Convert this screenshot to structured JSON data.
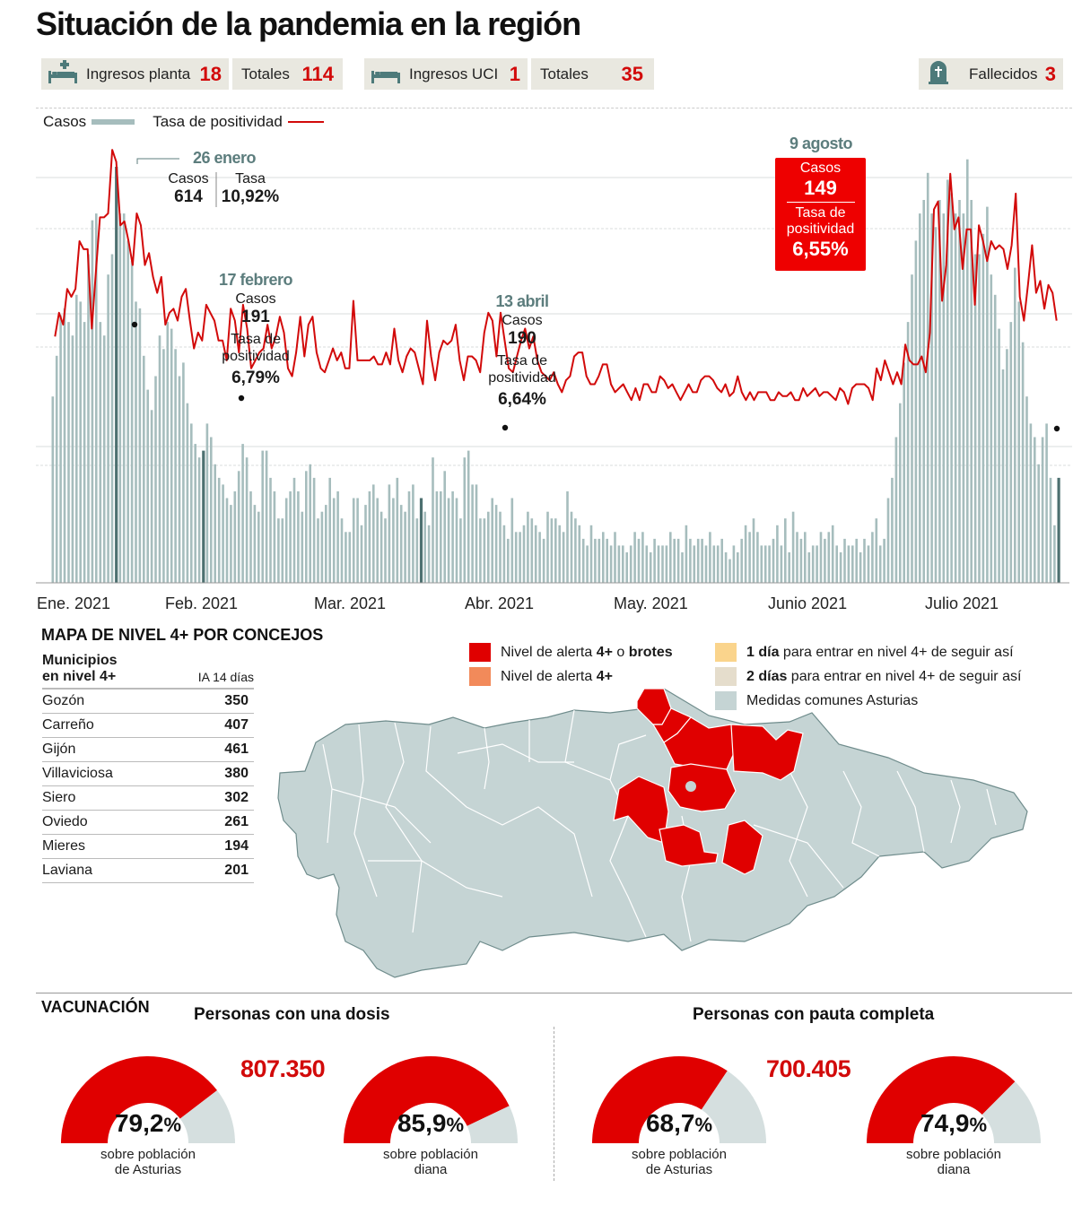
{
  "header": {
    "title": "Situación de la pandemia en la región"
  },
  "stats": {
    "ingresos_planta": {
      "label": "Ingresos planta",
      "value": "18",
      "icon": "hospital-bed-plus-icon"
    },
    "totales_planta": {
      "label": "Totales",
      "value": "114"
    },
    "ingresos_uci": {
      "label": "Ingresos UCI",
      "value": "1",
      "icon": "hospital-bed-icon"
    },
    "totales_uci": {
      "label": "Totales",
      "value": "35"
    },
    "fallecidos": {
      "label": "Fallecidos",
      "value": "3",
      "icon": "tombstone-icon"
    }
  },
  "chart_data": {
    "type": "bar+line",
    "legend": {
      "bars": "Casos",
      "line": "Tasa de positividad"
    },
    "legend_placement": "top-left",
    "x_tick_labels": [
      "Ene. 2021",
      "Feb. 2021",
      "Mar. 2021",
      "Abr. 2021",
      "May. 2021",
      "Junio 2021",
      "Julio 2021"
    ],
    "series": [
      {
        "name": "Casos",
        "kind": "bar",
        "color": "#a6bdbd",
        "values": [
          275,
          335,
          395,
          405,
          385,
          365,
          425,
          415,
          385,
          485,
          535,
          545,
          385,
          365,
          455,
          485,
          614,
          545,
          545,
          505,
          475,
          415,
          405,
          335,
          285,
          255,
          305,
          365,
          345,
          385,
          375,
          345,
          305,
          325,
          265,
          235,
          205,
          185,
          195,
          235,
          215,
          175,
          155,
          145,
          125,
          115,
          135,
          165,
          205,
          185,
          135,
          115,
          105,
          195,
          195,
          155,
          135,
          95,
          95,
          125,
          135,
          155,
          135,
          105,
          165,
          175,
          155,
          95,
          105,
          115,
          155,
          125,
          135,
          95,
          75,
          75,
          125,
          125,
          85,
          115,
          135,
          145,
          125,
          105,
          95,
          145,
          125,
          155,
          115,
          105,
          135,
          145,
          95,
          125,
          105,
          85,
          185,
          135,
          135,
          165,
          125,
          135,
          125,
          95,
          185,
          195,
          145,
          145,
          95,
          95,
          105,
          125,
          115,
          105,
          85,
          65,
          125,
          75,
          75,
          85,
          105,
          95,
          85,
          75,
          65,
          105,
          95,
          95,
          85,
          75,
          135,
          105,
          95,
          85,
          65,
          55,
          85,
          65,
          65,
          75,
          65,
          55,
          75,
          55,
          55,
          45,
          55,
          75,
          65,
          75,
          55,
          45,
          65,
          55,
          55,
          55,
          75,
          65,
          65,
          45,
          85,
          65,
          55,
          65,
          65,
          55,
          75,
          55,
          55,
          65,
          45,
          35,
          55,
          45,
          65,
          85,
          75,
          95,
          75,
          55,
          55,
          55,
          65,
          85,
          55,
          95,
          45,
          105,
          75,
          65,
          75,
          45,
          55,
          55,
          75,
          65,
          75,
          85,
          55,
          45,
          65,
          55,
          55,
          65,
          45,
          65,
          55,
          75,
          95,
          55,
          65,
          125,
          155,
          215,
          265,
          325,
          385,
          455,
          505,
          545,
          565,
          605,
          545,
          525,
          565,
          545,
          595,
          575,
          545,
          565,
          545,
          625,
          565,
          485,
          485,
          515,
          555,
          455,
          425,
          375,
          315,
          345,
          385,
          465,
          415,
          355,
          275,
          235,
          215,
          175,
          215,
          235,
          155,
          85,
          155
        ]
      },
      {
        "name": "Tasa de positividad",
        "kind": "line",
        "color": "#d20a0a",
        "unit": "%",
        "values": [
          6.2,
          6.8,
          6.5,
          7.4,
          7.2,
          7.4,
          8.6,
          8.4,
          8.4,
          6.4,
          7.8,
          9.2,
          9.2,
          9.3,
          10.9,
          10.6,
          9.0,
          9.1,
          8.6,
          8.0,
          9.3,
          9.0,
          8.0,
          8.3,
          7.7,
          7.3,
          7.7,
          6.5,
          6.8,
          6.9,
          6.6,
          7.2,
          7.4,
          6.6,
          5.9,
          6.3,
          6.1,
          7.0,
          6.8,
          6.6,
          6.1,
          6.1,
          5.6,
          6.9,
          6.6,
          5.8,
          7.0,
          6.4,
          5.4,
          5.6,
          5.8,
          5.9,
          6.5,
          5.9,
          6.2,
          6.7,
          6.3,
          5.4,
          5.2,
          5.8,
          6.7,
          5.7,
          6.5,
          6.7,
          5.8,
          5.4,
          5.3,
          5.6,
          5.9,
          5.6,
          5.8,
          5.4,
          5.4,
          7.1,
          5.6,
          5.6,
          5.6,
          5.6,
          5.7,
          5.5,
          5.5,
          5.8,
          5.5,
          6.4,
          5.6,
          5.3,
          5.7,
          5.9,
          5.8,
          5.4,
          5.0,
          6.6,
          5.7,
          5.1,
          5.8,
          6.1,
          6.0,
          6.1,
          6.5,
          5.6,
          5.1,
          5.7,
          5.7,
          5.6,
          5.3,
          6.3,
          6.8,
          6.6,
          5.7,
          6.8,
          6.1,
          5.4,
          5.3,
          5.7,
          6.1,
          6.4,
          5.9,
          6.2,
          5.6,
          5.3,
          5.2,
          5.1,
          5.3,
          5.0,
          4.8,
          5.1,
          5.2,
          5.7,
          5.8,
          5.8,
          5.2,
          5.0,
          5.0,
          5.2,
          5.5,
          5.5,
          5.0,
          4.8,
          4.9,
          5.0,
          4.8,
          4.6,
          4.9,
          4.6,
          5.0,
          5.0,
          4.8,
          4.8,
          5.2,
          5.1,
          4.9,
          5.0,
          4.8,
          4.6,
          4.8,
          5.0,
          4.8,
          4.8,
          5.1,
          5.2,
          5.2,
          5.1,
          4.9,
          4.8,
          5.0,
          4.7,
          4.8,
          5.2,
          4.8,
          4.6,
          4.8,
          4.6,
          4.8,
          4.8,
          4.8,
          4.6,
          4.6,
          4.8,
          4.7,
          4.7,
          4.8,
          4.6,
          4.6,
          4.9,
          4.7,
          4.8,
          4.9,
          4.7,
          4.8,
          4.8,
          4.7,
          4.6,
          4.9,
          4.8,
          4.5,
          4.9,
          5.0,
          5.0,
          5.0,
          4.9,
          4.6,
          5.4,
          5.1,
          5.6,
          5.3,
          5.0,
          5.3,
          5.0,
          6.0,
          5.6,
          5.5,
          5.5,
          5.7,
          5.3,
          6.3,
          9.4,
          9.6,
          7.1,
          8.0,
          10.3,
          8.9,
          9.2,
          7.9,
          8.9,
          8.9,
          7.0,
          9.0,
          8.6,
          8.1,
          8.6,
          8.4,
          8.5,
          8.4,
          7.9,
          8.5,
          9.8,
          7.2,
          6.6,
          7.5,
          8.5,
          7.3,
          7.6,
          6.9,
          7.5,
          7.3,
          6.6
        ]
      }
    ],
    "annotations": [
      {
        "date": "26 enero",
        "casos_label": "Casos",
        "casos": "614",
        "tasa_label": "Tasa",
        "tasa": "10,92%"
      },
      {
        "date": "17 febrero",
        "casos_label": "Casos",
        "casos": "191",
        "tasa_label": "Tasa de positividad",
        "tasa": "6,79%"
      },
      {
        "date": "13 abril",
        "casos_label": "Casos",
        "casos": "190",
        "tasa_label": "Tasa de positividad",
        "tasa": "6,64%"
      },
      {
        "date": "9 agosto",
        "casos_label": "Casos",
        "casos": "149",
        "tasa_label": "Tasa de positividad",
        "tasa": "6,55%"
      }
    ],
    "grid": true
  },
  "map": {
    "title": "MAPA DE NIVEL 4+ POR CONCEJOS",
    "table": {
      "header_name": "Municipios en nivel 4+",
      "header_name_line1": "Municipios",
      "header_name_line2": "en nivel 4+",
      "header_value": "IA 14 días",
      "rows": [
        {
          "name": "Gozón",
          "value": "350"
        },
        {
          "name": "Carreño",
          "value": "407"
        },
        {
          "name": "Gijón",
          "value": "461"
        },
        {
          "name": "Villaviciosa",
          "value": "380"
        },
        {
          "name": "Siero",
          "value": "302"
        },
        {
          "name": "Oviedo",
          "value": "261"
        },
        {
          "name": "Mieres",
          "value": "194"
        },
        {
          "name": "Laviana",
          "value": "201"
        }
      ]
    },
    "legend": [
      {
        "pre": "Nivel de alerta ",
        "bold": "4+",
        "mid": " o ",
        "bold2": "brotes",
        "color": "#e00000"
      },
      {
        "pre": "Nivel de alerta ",
        "bold": "4+",
        "mid": "",
        "bold2": "",
        "color": "#f28a5a"
      },
      {
        "pre": "",
        "bold": "1 día",
        "mid": " para entrar en nivel 4+ de seguir así",
        "bold2": "",
        "color": "#fad48c"
      },
      {
        "pre": "",
        "bold": "2 días",
        "mid": " para entrar en nivel 4+ de seguir así",
        "bold2": "",
        "color": "#e5ddcc"
      },
      {
        "pre": "Medidas comunes Asturias",
        "bold": "",
        "mid": "",
        "bold2": "",
        "color": "#c5d4d4"
      }
    ]
  },
  "vaccination": {
    "title": "VACUNACIÓN",
    "groups": [
      {
        "title": "Personas con una dosis",
        "total": "807.350",
        "gauges": [
          {
            "pct": 79.2,
            "pct_text": "79,2",
            "sub1": "sobre población",
            "sub2": "de Asturias"
          },
          {
            "pct": 85.9,
            "pct_text": "85,9",
            "sub1": "sobre población",
            "sub2": "diana"
          }
        ]
      },
      {
        "title": "Personas con pauta completa",
        "total": "700.405",
        "gauges": [
          {
            "pct": 68.7,
            "pct_text": "68,7",
            "sub1": "sobre población",
            "sub2": "de Asturias"
          },
          {
            "pct": 74.9,
            "pct_text": "74,9",
            "sub1": "sobre población",
            "sub2": "diana"
          }
        ]
      }
    ],
    "pct_symbol": "%",
    "colors": {
      "fill": "#e00000",
      "rest": "#d5dfdf"
    }
  }
}
